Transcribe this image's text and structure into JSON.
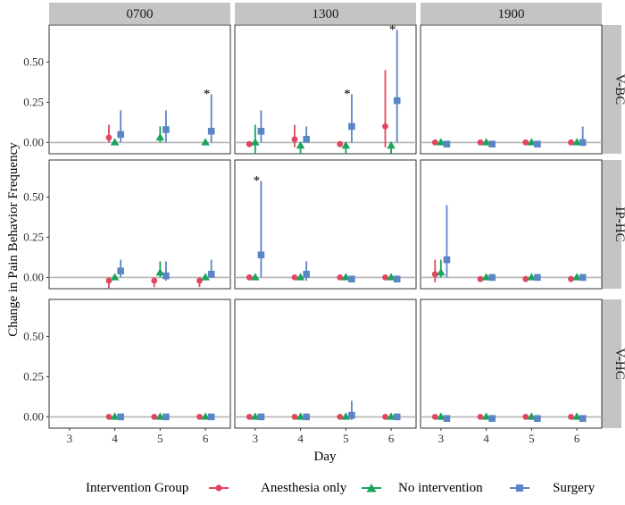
{
  "chart_data": {
    "type": "scatter",
    "title": "",
    "xlabel": "Day",
    "ylabel": "Change in Pain Behavior Frequency",
    "x_ticks": [
      3,
      4,
      5,
      6
    ],
    "xlim": [
      2.55,
      6.55
    ],
    "y_ticks": [
      0,
      0.25,
      0.5
    ],
    "y_tick_labels": [
      "0.00",
      "0.25",
      "0.50"
    ],
    "ylim": [
      -0.07,
      0.73
    ],
    "columns": [
      "0700",
      "1300",
      "1900"
    ],
    "rows": [
      "V-BC",
      "IP-HC",
      "V-HC"
    ],
    "legend": {
      "title": "Intervention Group",
      "position": "bottom",
      "entries": [
        "Anesthesia only",
        "No intervention",
        "Surgery"
      ]
    },
    "series_colors": {
      "Anesthesia only": "#e0475e",
      "No intervention": "#1aa35a",
      "Surgery": "#5b86c6"
    },
    "significance_marker": "*",
    "panels": [
      {
        "row": "V-BC",
        "col": "0700",
        "series": [
          {
            "name": "Anesthesia only",
            "points": [
              {
                "x": 4,
                "y": 0.03,
                "lo": 0.0,
                "hi": 0.11
              }
            ]
          },
          {
            "name": "No intervention",
            "points": [
              {
                "x": 4,
                "y": 0.0,
                "lo": 0.0,
                "hi": 0.0
              },
              {
                "x": 5,
                "y": 0.03,
                "lo": 0.0,
                "hi": 0.1
              },
              {
                "x": 6,
                "y": 0.0,
                "lo": 0.0,
                "hi": 0.0
              }
            ]
          },
          {
            "name": "Surgery",
            "points": [
              {
                "x": 4,
                "y": 0.05,
                "lo": 0.0,
                "hi": 0.2
              },
              {
                "x": 5,
                "y": 0.08,
                "lo": 0.0,
                "hi": 0.2
              },
              {
                "x": 6,
                "y": 0.07,
                "lo": 0.0,
                "hi": 0.3,
                "sig": true
              }
            ]
          }
        ]
      },
      {
        "row": "V-BC",
        "col": "1300",
        "series": [
          {
            "name": "Anesthesia only",
            "points": [
              {
                "x": 3,
                "y": -0.01,
                "lo": -0.02,
                "hi": 0.0
              },
              {
                "x": 4,
                "y": 0.02,
                "lo": -0.03,
                "hi": 0.11
              },
              {
                "x": 5,
                "y": -0.01,
                "lo": -0.02,
                "hi": 0.0
              },
              {
                "x": 6,
                "y": 0.1,
                "lo": -0.03,
                "hi": 0.45
              }
            ]
          },
          {
            "name": "No intervention",
            "points": [
              {
                "x": 3,
                "y": 0.0,
                "lo": -0.07,
                "hi": 0.11
              },
              {
                "x": 4,
                "y": -0.02,
                "lo": -0.07,
                "hi": 0.0
              },
              {
                "x": 5,
                "y": -0.02,
                "lo": -0.07,
                "hi": 0.0
              },
              {
                "x": 6,
                "y": -0.02,
                "lo": -0.07,
                "hi": 0.0
              }
            ]
          },
          {
            "name": "Surgery",
            "points": [
              {
                "x": 3,
                "y": 0.07,
                "lo": 0.0,
                "hi": 0.2
              },
              {
                "x": 4,
                "y": 0.02,
                "lo": 0.0,
                "hi": 0.1
              },
              {
                "x": 5,
                "y": 0.1,
                "lo": 0.0,
                "hi": 0.3,
                "sig": true
              },
              {
                "x": 6,
                "y": 0.26,
                "lo": 0.0,
                "hi": 0.7,
                "sig": true
              }
            ]
          }
        ]
      },
      {
        "row": "V-BC",
        "col": "1900",
        "series": [
          {
            "name": "Anesthesia only",
            "points": [
              {
                "x": 3,
                "y": 0.0,
                "lo": 0.0,
                "hi": 0.0
              },
              {
                "x": 4,
                "y": 0.0,
                "lo": 0.0,
                "hi": 0.0
              },
              {
                "x": 5,
                "y": 0.0,
                "lo": 0.0,
                "hi": 0.0
              },
              {
                "x": 6,
                "y": 0.0,
                "lo": 0.0,
                "hi": 0.0
              }
            ]
          },
          {
            "name": "No intervention",
            "points": [
              {
                "x": 3,
                "y": 0.0,
                "lo": 0.0,
                "hi": 0.0
              },
              {
                "x": 4,
                "y": 0.0,
                "lo": 0.0,
                "hi": 0.0
              },
              {
                "x": 5,
                "y": 0.0,
                "lo": 0.0,
                "hi": 0.0
              },
              {
                "x": 6,
                "y": 0.0,
                "lo": 0.0,
                "hi": 0.0
              }
            ]
          },
          {
            "name": "Surgery",
            "points": [
              {
                "x": 3,
                "y": -0.01,
                "lo": -0.02,
                "hi": 0.0
              },
              {
                "x": 4,
                "y": -0.01,
                "lo": -0.02,
                "hi": 0.0
              },
              {
                "x": 5,
                "y": -0.01,
                "lo": -0.02,
                "hi": 0.0
              },
              {
                "x": 6,
                "y": 0.0,
                "lo": -0.02,
                "hi": 0.1
              }
            ]
          }
        ]
      },
      {
        "row": "IP-HC",
        "col": "0700",
        "series": [
          {
            "name": "Anesthesia only",
            "points": [
              {
                "x": 4,
                "y": -0.02,
                "lo": -0.07,
                "hi": 0.0
              },
              {
                "x": 5,
                "y": -0.02,
                "lo": -0.06,
                "hi": 0.0
              },
              {
                "x": 6,
                "y": -0.02,
                "lo": -0.06,
                "hi": 0.0
              }
            ]
          },
          {
            "name": "No intervention",
            "points": [
              {
                "x": 4,
                "y": 0.0,
                "lo": 0.0,
                "hi": 0.0
              },
              {
                "x": 5,
                "y": 0.03,
                "lo": 0.0,
                "hi": 0.1
              },
              {
                "x": 6,
                "y": 0.0,
                "lo": 0.0,
                "hi": 0.0
              }
            ]
          },
          {
            "name": "Surgery",
            "points": [
              {
                "x": 4,
                "y": 0.04,
                "lo": 0.0,
                "hi": 0.11
              },
              {
                "x": 5,
                "y": 0.01,
                "lo": -0.02,
                "hi": 0.1
              },
              {
                "x": 6,
                "y": 0.02,
                "lo": 0.0,
                "hi": 0.11
              }
            ]
          }
        ]
      },
      {
        "row": "IP-HC",
        "col": "1300",
        "series": [
          {
            "name": "Anesthesia only",
            "points": [
              {
                "x": 3,
                "y": 0.0,
                "lo": 0.0,
                "hi": 0.0
              },
              {
                "x": 4,
                "y": 0.0,
                "lo": 0.0,
                "hi": 0.0
              },
              {
                "x": 5,
                "y": 0.0,
                "lo": 0.0,
                "hi": 0.0
              },
              {
                "x": 6,
                "y": 0.0,
                "lo": 0.0,
                "hi": 0.0
              }
            ]
          },
          {
            "name": "No intervention",
            "points": [
              {
                "x": 3,
                "y": 0.0,
                "lo": 0.0,
                "hi": 0.0
              },
              {
                "x": 4,
                "y": 0.0,
                "lo": 0.0,
                "hi": 0.0
              },
              {
                "x": 5,
                "y": 0.0,
                "lo": 0.0,
                "hi": 0.0
              },
              {
                "x": 6,
                "y": 0.0,
                "lo": 0.0,
                "hi": 0.0
              }
            ]
          },
          {
            "name": "Surgery",
            "points": [
              {
                "x": 3,
                "y": 0.14,
                "lo": 0.0,
                "hi": 0.6,
                "sig": true
              },
              {
                "x": 4,
                "y": 0.02,
                "lo": -0.02,
                "hi": 0.1
              },
              {
                "x": 5,
                "y": -0.01,
                "lo": -0.02,
                "hi": 0.0
              },
              {
                "x": 6,
                "y": -0.01,
                "lo": -0.02,
                "hi": 0.0
              }
            ]
          }
        ]
      },
      {
        "row": "IP-HC",
        "col": "1900",
        "series": [
          {
            "name": "Anesthesia only",
            "points": [
              {
                "x": 3,
                "y": 0.02,
                "lo": -0.03,
                "hi": 0.11
              },
              {
                "x": 4,
                "y": -0.01,
                "lo": -0.02,
                "hi": 0.0
              },
              {
                "x": 5,
                "y": -0.01,
                "lo": -0.02,
                "hi": 0.0
              },
              {
                "x": 6,
                "y": -0.01,
                "lo": -0.02,
                "hi": 0.0
              }
            ]
          },
          {
            "name": "No intervention",
            "points": [
              {
                "x": 3,
                "y": 0.03,
                "lo": 0.0,
                "hi": 0.11
              },
              {
                "x": 4,
                "y": 0.0,
                "lo": 0.0,
                "hi": 0.0
              },
              {
                "x": 5,
                "y": 0.0,
                "lo": 0.0,
                "hi": 0.0
              },
              {
                "x": 6,
                "y": 0.0,
                "lo": 0.0,
                "hi": 0.0
              }
            ]
          },
          {
            "name": "Surgery",
            "points": [
              {
                "x": 3,
                "y": 0.11,
                "lo": 0.0,
                "hi": 0.45
              },
              {
                "x": 4,
                "y": 0.0,
                "lo": 0.0,
                "hi": 0.0
              },
              {
                "x": 5,
                "y": 0.0,
                "lo": 0.0,
                "hi": 0.0
              },
              {
                "x": 6,
                "y": 0.0,
                "lo": 0.0,
                "hi": 0.0
              }
            ]
          }
        ]
      },
      {
        "row": "V-HC",
        "col": "0700",
        "series": [
          {
            "name": "Anesthesia only",
            "points": [
              {
                "x": 4,
                "y": 0.0,
                "lo": 0.0,
                "hi": 0.0
              },
              {
                "x": 5,
                "y": 0.0,
                "lo": 0.0,
                "hi": 0.0
              },
              {
                "x": 6,
                "y": 0.0,
                "lo": 0.0,
                "hi": 0.0
              }
            ]
          },
          {
            "name": "No intervention",
            "points": [
              {
                "x": 4,
                "y": 0.0,
                "lo": 0.0,
                "hi": 0.0
              },
              {
                "x": 5,
                "y": 0.0,
                "lo": 0.0,
                "hi": 0.0
              },
              {
                "x": 6,
                "y": 0.0,
                "lo": 0.0,
                "hi": 0.0
              }
            ]
          },
          {
            "name": "Surgery",
            "points": [
              {
                "x": 4,
                "y": 0.0,
                "lo": 0.0,
                "hi": 0.0
              },
              {
                "x": 5,
                "y": 0.0,
                "lo": 0.0,
                "hi": 0.0
              },
              {
                "x": 6,
                "y": 0.0,
                "lo": 0.0,
                "hi": 0.0
              }
            ]
          }
        ]
      },
      {
        "row": "V-HC",
        "col": "1300",
        "series": [
          {
            "name": "Anesthesia only",
            "points": [
              {
                "x": 3,
                "y": 0.0,
                "lo": 0.0,
                "hi": 0.0
              },
              {
                "x": 4,
                "y": 0.0,
                "lo": 0.0,
                "hi": 0.0
              },
              {
                "x": 5,
                "y": 0.0,
                "lo": 0.0,
                "hi": 0.0
              },
              {
                "x": 6,
                "y": 0.0,
                "lo": 0.0,
                "hi": 0.0
              }
            ]
          },
          {
            "name": "No intervention",
            "points": [
              {
                "x": 3,
                "y": 0.0,
                "lo": 0.0,
                "hi": 0.0
              },
              {
                "x": 4,
                "y": 0.0,
                "lo": 0.0,
                "hi": 0.0
              },
              {
                "x": 5,
                "y": 0.0,
                "lo": 0.0,
                "hi": 0.0
              },
              {
                "x": 6,
                "y": 0.0,
                "lo": 0.0,
                "hi": 0.0
              }
            ]
          },
          {
            "name": "Surgery",
            "points": [
              {
                "x": 3,
                "y": 0.0,
                "lo": 0.0,
                "hi": 0.0
              },
              {
                "x": 4,
                "y": 0.0,
                "lo": 0.0,
                "hi": 0.0
              },
              {
                "x": 5,
                "y": 0.01,
                "lo": -0.02,
                "hi": 0.1
              },
              {
                "x": 6,
                "y": 0.0,
                "lo": 0.0,
                "hi": 0.0
              }
            ]
          }
        ]
      },
      {
        "row": "V-HC",
        "col": "1900",
        "series": [
          {
            "name": "Anesthesia only",
            "points": [
              {
                "x": 3,
                "y": 0.0,
                "lo": 0.0,
                "hi": 0.0
              },
              {
                "x": 4,
                "y": 0.0,
                "lo": 0.0,
                "hi": 0.0
              },
              {
                "x": 5,
                "y": 0.0,
                "lo": 0.0,
                "hi": 0.0
              },
              {
                "x": 6,
                "y": 0.0,
                "lo": 0.0,
                "hi": 0.0
              }
            ]
          },
          {
            "name": "No intervention",
            "points": [
              {
                "x": 3,
                "y": 0.0,
                "lo": 0.0,
                "hi": 0.0
              },
              {
                "x": 4,
                "y": 0.0,
                "lo": 0.0,
                "hi": 0.0
              },
              {
                "x": 5,
                "y": 0.0,
                "lo": 0.0,
                "hi": 0.0
              },
              {
                "x": 6,
                "y": 0.0,
                "lo": 0.0,
                "hi": 0.0
              }
            ]
          },
          {
            "name": "Surgery",
            "points": [
              {
                "x": 3,
                "y": -0.01,
                "lo": -0.02,
                "hi": 0.0
              },
              {
                "x": 4,
                "y": -0.01,
                "lo": -0.02,
                "hi": 0.0
              },
              {
                "x": 5,
                "y": -0.01,
                "lo": -0.02,
                "hi": 0.0
              },
              {
                "x": 6,
                "y": -0.01,
                "lo": -0.02,
                "hi": 0.0
              }
            ]
          }
        ]
      }
    ]
  }
}
